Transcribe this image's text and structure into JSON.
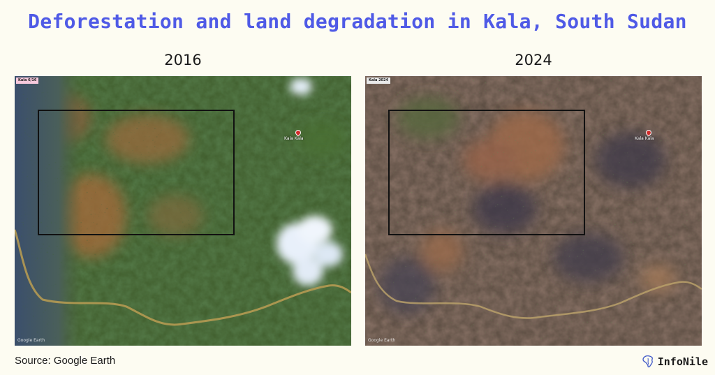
{
  "title": "Deforestation and land degradation in Kala, South Sudan",
  "panels": [
    {
      "year": "2016",
      "tag": "Kala 6/16",
      "place": "Kala Kala",
      "watermark": "Google Earth",
      "scene": "satellite-view-dense-green-vegetation-with-clouds"
    },
    {
      "year": "2024",
      "tag": "Kala 2024",
      "place": "Kala Kala",
      "watermark": "Google Earth",
      "scene": "satellite-view-degraded-brown-land-dark-burn-scars"
    }
  ],
  "source": "Source: Google Earth",
  "brand": {
    "name": "InfoNile",
    "icon": "africa-nile-icon"
  },
  "colors": {
    "title": "#4f5ae6",
    "background": "#fdfcf2",
    "frame": "#111111"
  }
}
